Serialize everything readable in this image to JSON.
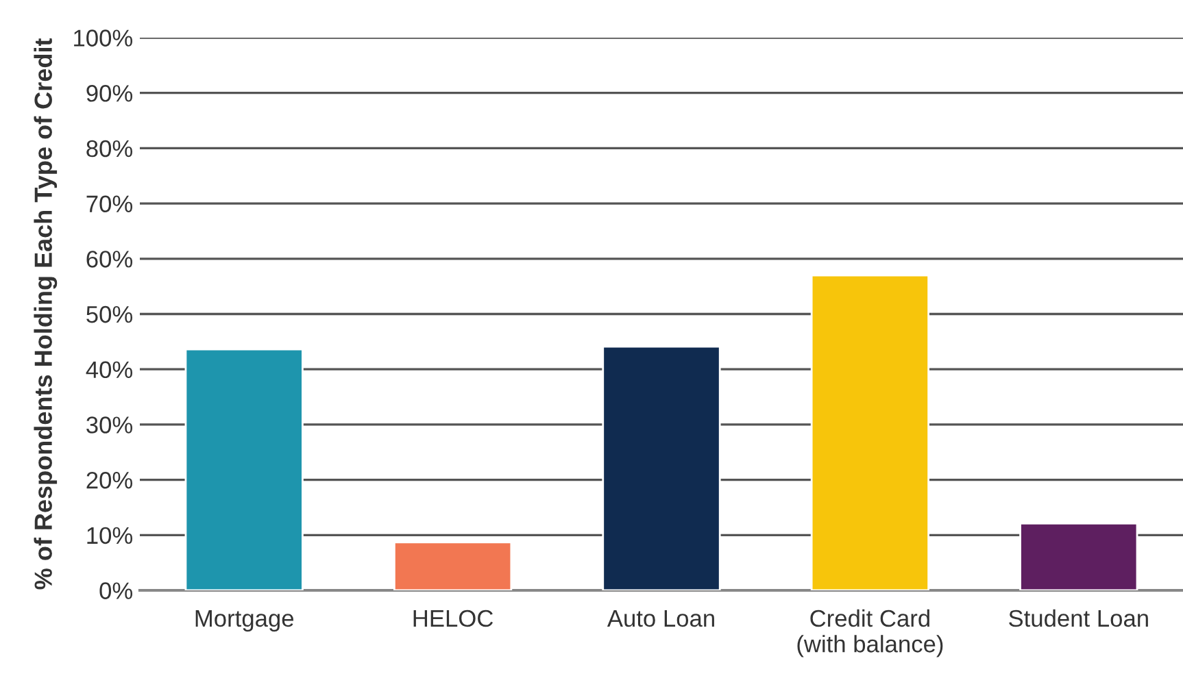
{
  "chart_data": {
    "type": "bar",
    "ylabel": "% of Respondents Holding Each Type of Credit",
    "categories": [
      "Mortgage",
      "HELOC",
      "Auto Loan",
      "Credit Card\n(with balance)",
      "Student Loan"
    ],
    "values": [
      43.6,
      8.7,
      44.1,
      57.0,
      12.1
    ],
    "colors": [
      "#1e95ad",
      "#f27752",
      "#102b50",
      "#f7c50b",
      "#5e1f60"
    ],
    "ylim": [
      0,
      100
    ],
    "yticks": [
      {
        "value": 0,
        "label": "0%"
      },
      {
        "value": 10,
        "label": "10%"
      },
      {
        "value": 20,
        "label": "20%"
      },
      {
        "value": 30,
        "label": "30%"
      },
      {
        "value": 40,
        "label": "40%"
      },
      {
        "value": 50,
        "label": "50%"
      },
      {
        "value": 60,
        "label": "60%"
      },
      {
        "value": 70,
        "label": "70%"
      },
      {
        "value": 80,
        "label": "80%"
      },
      {
        "value": 90,
        "label": "90%"
      },
      {
        "value": 100,
        "label": "100%"
      }
    ],
    "grid": "y"
  }
}
